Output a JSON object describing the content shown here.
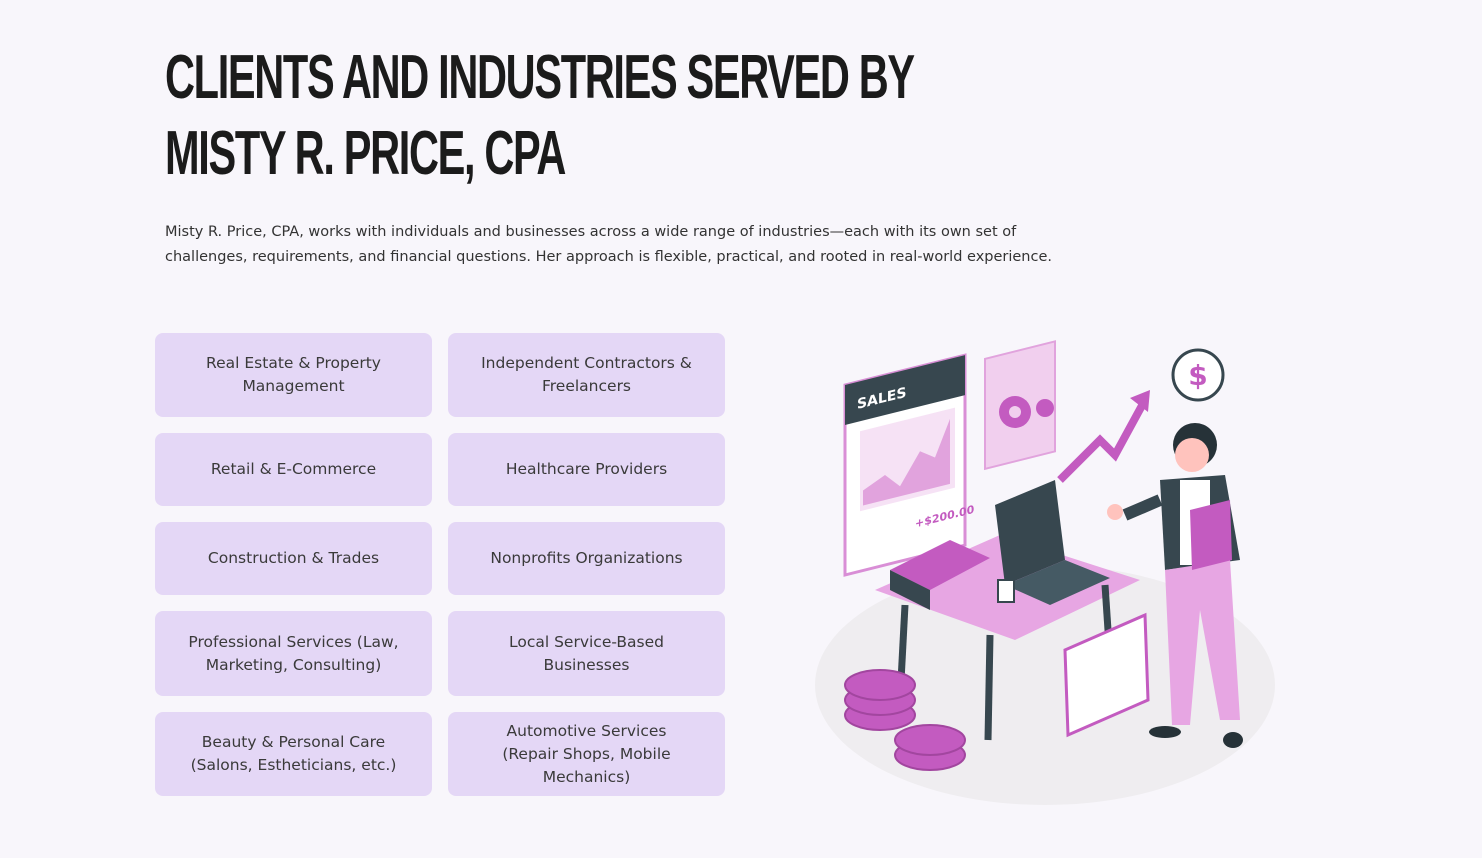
{
  "heading": {
    "lines": [
      "CLIENTS AND INDUSTRIES SERVED BY",
      "MISTY R. PRICE, CPA"
    ]
  },
  "intro": "Misty R. Price, CPA, works with individuals and businesses across a wide range of industries—each with its own set of challenges, requirements, and financial questions. Her approach is flexible, practical, and rooted in real-world experience.",
  "industries": [
    "Real Estate & Property Management",
    "Independent Contractors & Freelancers",
    "Retail & E-Commerce",
    "Healthcare Providers",
    "Construction & Trades",
    "Nonprofits Organizations",
    "Professional Services (Law, Marketing, Consulting)",
    "Local Service-Based Businesses",
    "Beauty & Personal Care (Salons, Estheticians, etc.)",
    "Automotive Services (Repair Shops, Mobile Mechanics)"
  ],
  "illustration": {
    "labels": [
      "SALES",
      "+$200.00",
      "$"
    ]
  }
}
